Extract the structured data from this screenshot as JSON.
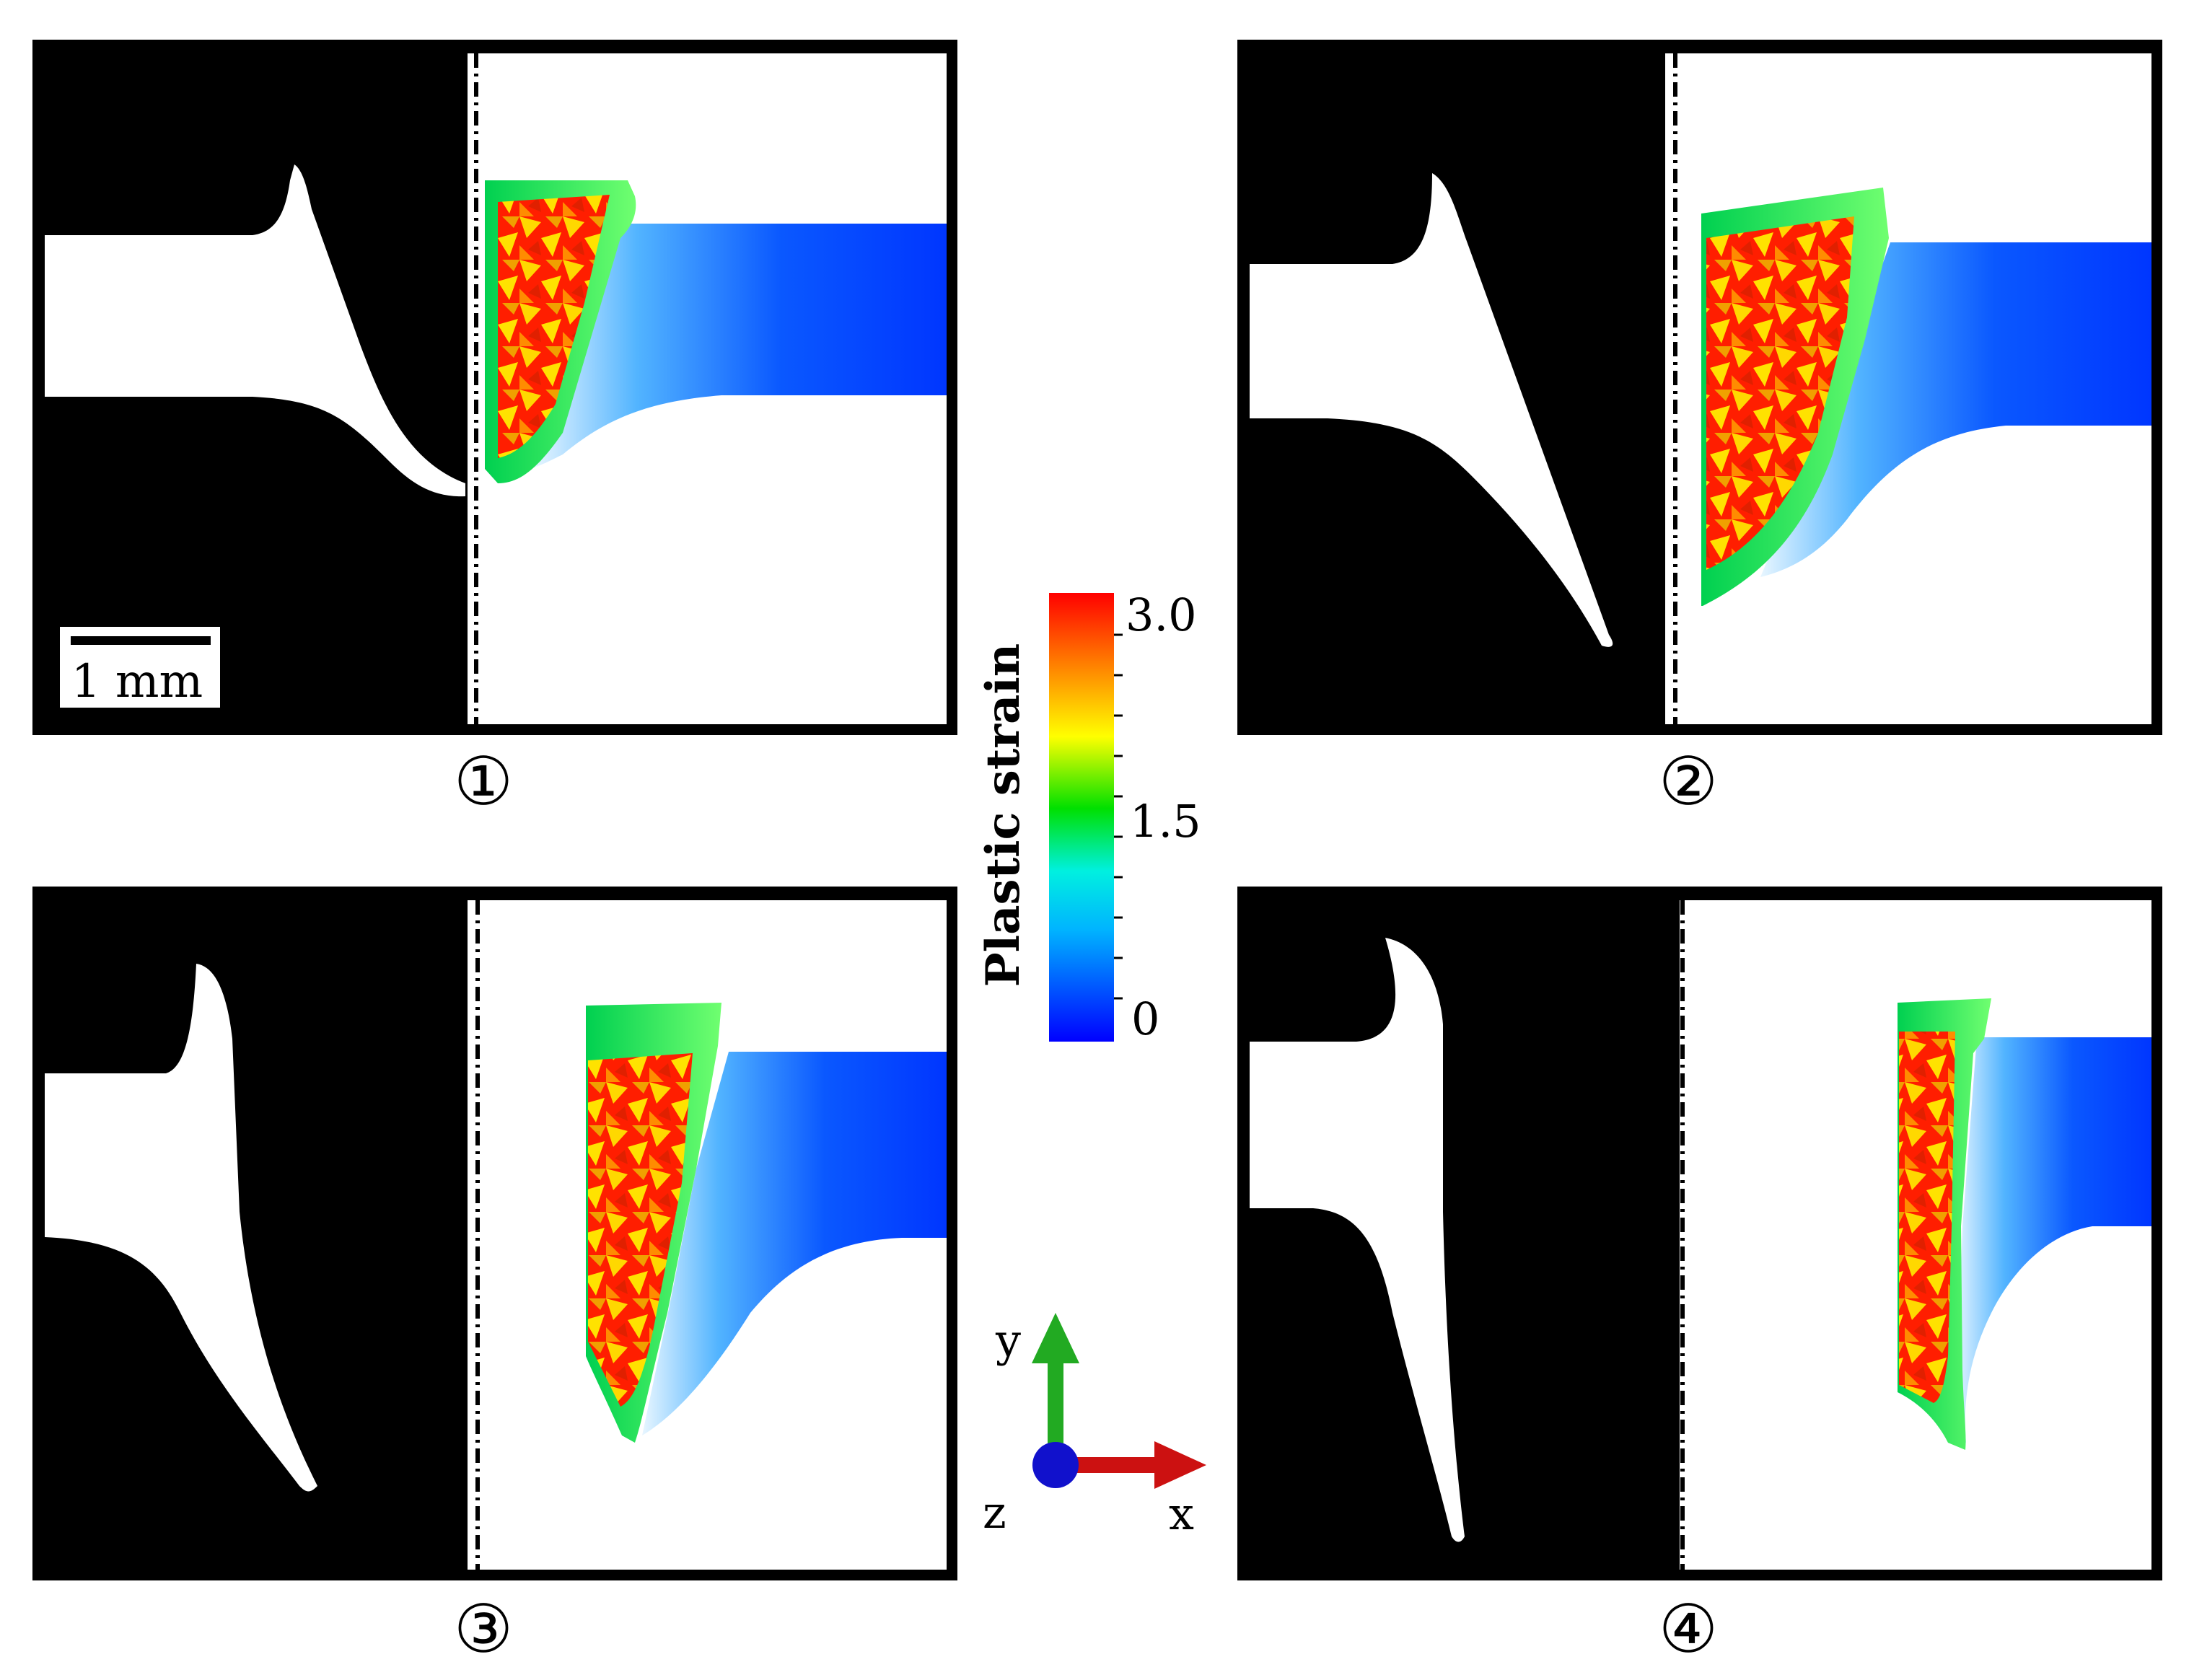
{
  "panels": [
    {
      "label": "①"
    },
    {
      "label": "②"
    },
    {
      "label": "③"
    },
    {
      "label": "④"
    }
  ],
  "scale_bar": {
    "text": "1 mm"
  },
  "colorbar": {
    "title": "Plastic strain",
    "ticks": [
      "3.0",
      "1.5",
      "0"
    ],
    "min": 0,
    "max": 3.0,
    "colors": [
      "#0000ff",
      "#00c8ff",
      "#00e0c0",
      "#00e000",
      "#ffff00",
      "#ff8000",
      "#ff0000"
    ]
  },
  "axes_triad": {
    "y": "y",
    "x": "x",
    "z": "z"
  },
  "colors": {
    "background": "#000000",
    "material": "#ffffff",
    "low_strain": "#0033ff",
    "high_strain": "#ff1a00",
    "y_axis": "#22aa22",
    "x_axis": "#cc1111",
    "z_axis": "#1111cc"
  }
}
